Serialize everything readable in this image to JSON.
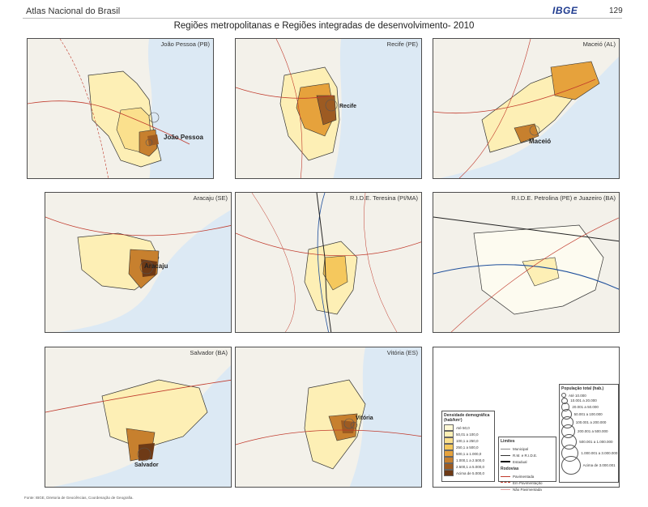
{
  "header": {
    "atlas": "Atlas Nacional do Brasil",
    "publisher": "IBGE",
    "page": "129"
  },
  "title": "Regiões metropolitanas e Regiões integradas de desenvolvimento- 2010",
  "panels": [
    {
      "label": "João Pessoa (PB)",
      "city": "João Pessoa"
    },
    {
      "label": "Recife (PE)",
      "city": "Recife"
    },
    {
      "label": "Maceió (AL)",
      "city": "Maceió"
    },
    {
      "label": "Aracaju (SE)",
      "city": "Aracaju"
    },
    {
      "label": "R.I.D.E. Teresina (PI/MA)",
      "city": ""
    },
    {
      "label": "R.I.D.E. Petrolina (PE) e Juazeiro (BA)",
      "city": ""
    },
    {
      "label": "Salvador (BA)",
      "city": "Salvador"
    },
    {
      "label": "Vitória (ES)",
      "city": "Vitória"
    }
  ],
  "legend": {
    "density_title": "Densidade demográfica (hab/km²)",
    "density_classes": [
      {
        "label": "Até 50,0",
        "color": "#fff9d6"
      },
      {
        "label": "50,01 a 100,0",
        "color": "#fdefb5"
      },
      {
        "label": "100,1 a 250,0",
        "color": "#fbe08d"
      },
      {
        "label": "250,1 a 500,0",
        "color": "#f5c85d"
      },
      {
        "label": "500,1 a 1.000,0",
        "color": "#e6a23c"
      },
      {
        "label": "1.000,1 a 2.500,0",
        "color": "#c7802e"
      },
      {
        "label": "2.500,1 a 5.000,0",
        "color": "#9d5b22"
      },
      {
        "label": "Acima de 5.000,0",
        "color": "#6e3a16"
      }
    ],
    "limits_title": "Limites",
    "limits": [
      "Municipal",
      "R.M. e R.I.D.E.",
      "Estadual"
    ],
    "roads_title": "Rodovias",
    "roads": [
      "Pavimentada",
      "Em Pavimentação",
      "Não Pavimentada"
    ],
    "pop_title": "População total (hab.)",
    "pop_classes": [
      "Até 10.000",
      "10.001 a 20.000",
      "20.001 a 50.000",
      "50.001 a 100.000",
      "100.001 a 200.000",
      "200.001 a 500.000",
      "500.001 a 1.000.000",
      "1.000.001 a 3.000.000",
      "Acima de 3.000.001"
    ]
  },
  "footer": "Fonte: IBGE, Diretoria de Geociências, Coordenação de Geografia."
}
